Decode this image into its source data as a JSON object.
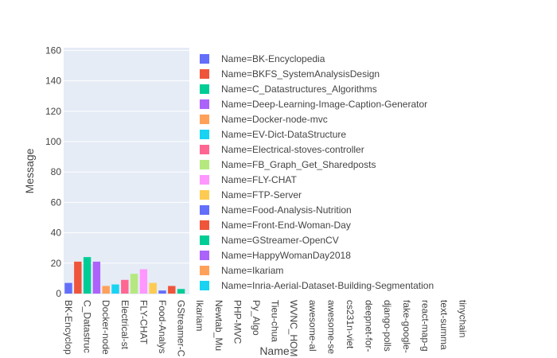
{
  "chart_data": {
    "type": "bar",
    "xlabel": "Name",
    "ylabel": "Message",
    "ylim": [
      0,
      161
    ],
    "yticks": [
      0,
      20,
      40,
      60,
      80,
      100,
      120,
      140,
      160
    ],
    "grid": true,
    "legend_position": "right",
    "categories": [
      "BK-Encyclopedia",
      "BKFS_SystemAnalysisDesign",
      "C_Datastructures_Algorithms",
      "Deep-Learning-Image-Caption-Generator",
      "Docker-node-mvc",
      "EV-Dict-DataStructure",
      "Electrical-stoves-controller",
      "FB_Graph_Get_Sharedposts",
      "FLY-CHAT",
      "FTP-Server",
      "Food-Analysis-Nutrition",
      "Front-End-Woman-Day",
      "GStreamer-OpenCV",
      "HappyWomanDay2018",
      "Ikariam",
      "Inria-Aerial-Dataset-Building-Segmentation"
    ],
    "values": [
      7,
      21,
      24,
      21,
      5,
      6,
      9,
      13,
      16,
      7,
      2,
      5,
      3,
      0,
      0,
      0
    ],
    "colors": [
      "#636efa",
      "#EF553B",
      "#00cc96",
      "#ab63fa",
      "#FFA15A",
      "#19d3f3",
      "#FF6692",
      "#B6E880",
      "#FF97FF",
      "#FECB52",
      "#636efa",
      "#EF553B",
      "#00cc96",
      "#ab63fa",
      "#FFA15A",
      "#19d3f3"
    ],
    "x_tick_labels": [
      "BK-Encyclop",
      "C_Datastruc",
      "Docker-node",
      "Electrical-st",
      "FLY-CHAT",
      "Food-Analys",
      "GStreamer-C",
      "Ikariam",
      "Newtab_Mu",
      "PHP-MVC",
      "Py_Algo",
      "Tieu-chua",
      "WVNC_HOM",
      "awesome-al",
      "awesome-se",
      "cs231n-viet",
      "deepnet-for-",
      "django-polls",
      "fake-google-",
      "react-map-g",
      "text-summa",
      "tinychain"
    ],
    "legend": [
      "Name=BK-Encyclopedia",
      "Name=BKFS_SystemAnalysisDesign",
      "Name=C_Datastructures_Algorithms",
      "Name=Deep-Learning-Image-Caption-Generator",
      "Name=Docker-node-mvc",
      "Name=EV-Dict-DataStructure",
      "Name=Electrical-stoves-controller",
      "Name=FB_Graph_Get_Sharedposts",
      "Name=FLY-CHAT",
      "Name=FTP-Server",
      "Name=Food-Analysis-Nutrition",
      "Name=Front-End-Woman-Day",
      "Name=GStreamer-OpenCV",
      "Name=HappyWomanDay2018",
      "Name=Ikariam",
      "Name=Inria-Aerial-Dataset-Building-Segmentation"
    ],
    "plot_background": "#e5ecf6"
  }
}
